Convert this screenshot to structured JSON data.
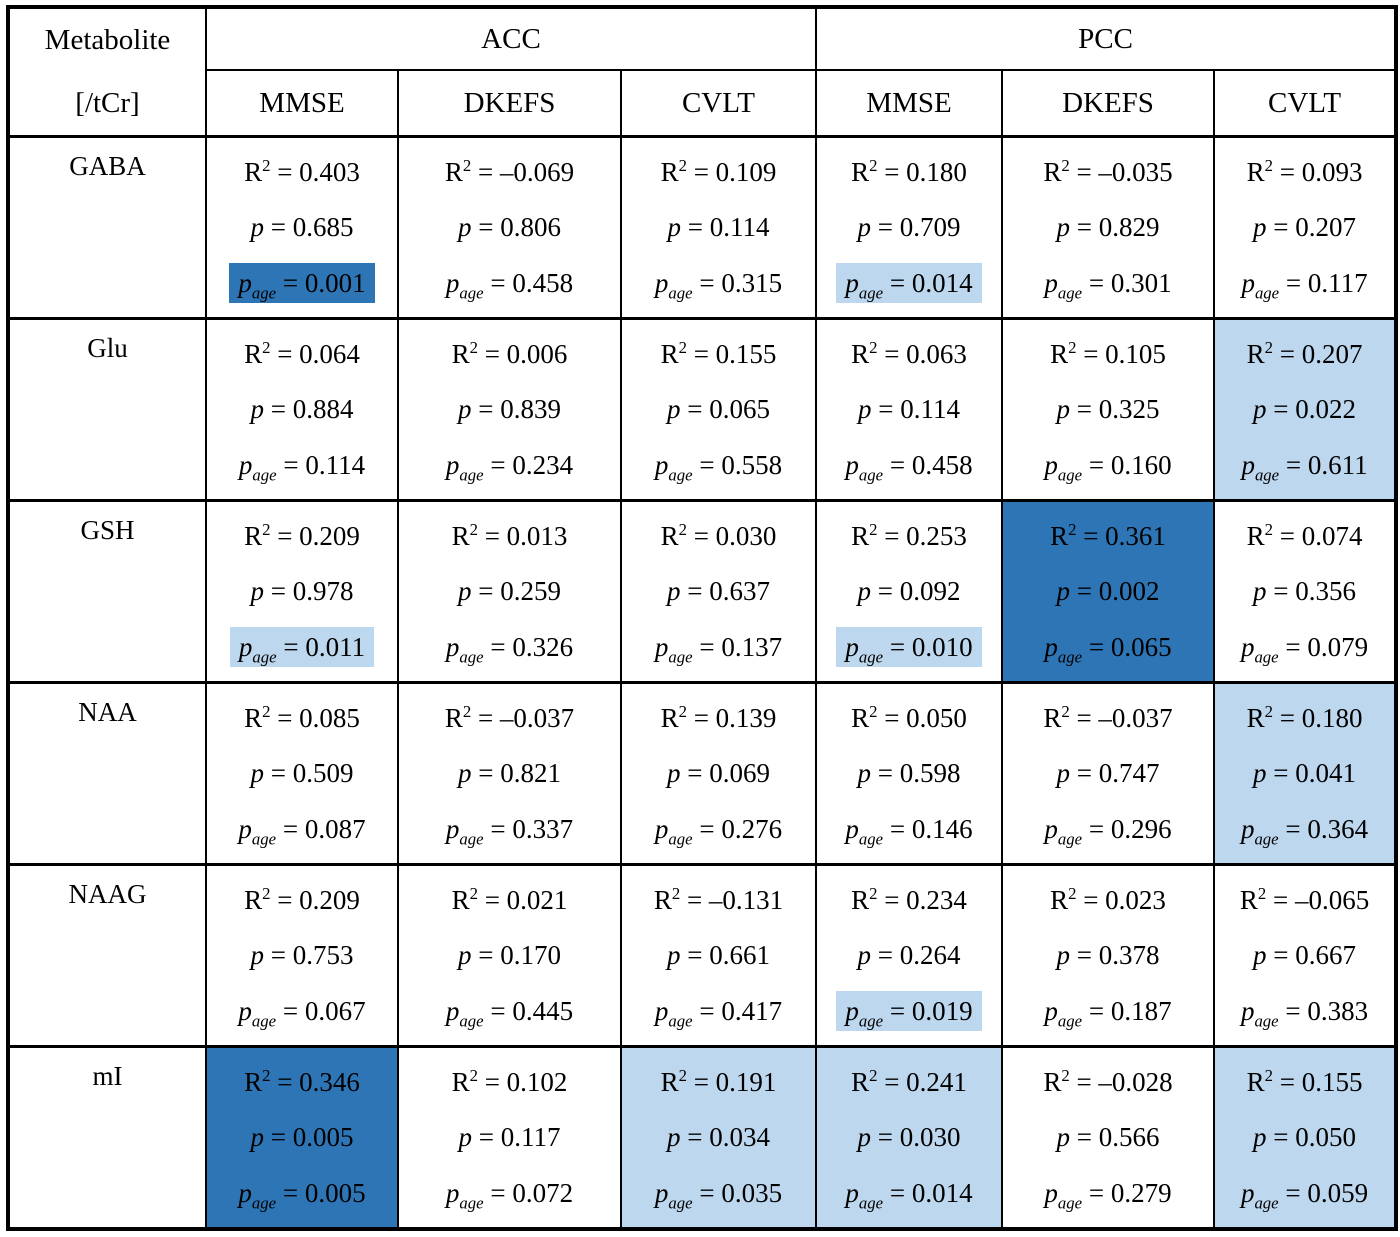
{
  "colors": {
    "highlight_dark_blue": "#2e75b6",
    "highlight_light_blue": "#bdd7ee",
    "border": "#000000",
    "background": "#ffffff"
  },
  "header": {
    "metabolite_line1": "Metabolite",
    "metabolite_line2": "[/tCr]",
    "regions": [
      "ACC",
      "PCC"
    ],
    "tests": [
      "MMSE",
      "DKEFS",
      "CVLT",
      "MMSE",
      "DKEFS",
      "CVLT"
    ]
  },
  "value_labels": {
    "r2_base": "R",
    "r2_exp": "2",
    "p": "p",
    "age": "age",
    "eq": " = "
  },
  "chart_data": {
    "type": "table",
    "columns": [
      "Metabolite [/tCr]",
      "ACC MMSE",
      "ACC DKEFS",
      "ACC CVLT",
      "PCC MMSE",
      "PCC DKEFS",
      "PCC CVLT"
    ],
    "cell_line_format": [
      "R2 = value",
      "p = value",
      "page = value"
    ],
    "highlight_legend": {
      "cell-dark": "entire cell shaded #2e75b6",
      "cell-light": "entire cell shaded #bdd7ee",
      "page-dark": "p_age line shaded #2e75b6",
      "page-light": "p_age line shaded #bdd7ee",
      "none": "no shading"
    },
    "rows": [
      {
        "metabolite": "GABA",
        "cells": [
          {
            "r2": "0.403",
            "p": "0.685",
            "p_age": "0.001",
            "highlight": "page-dark"
          },
          {
            "r2": "–0.069",
            "p": "0.806",
            "p_age": "0.458",
            "highlight": "none"
          },
          {
            "r2": "0.109",
            "p": "0.114",
            "p_age": "0.315",
            "highlight": "none"
          },
          {
            "r2": "0.180",
            "p": "0.709",
            "p_age": "0.014",
            "highlight": "page-light"
          },
          {
            "r2": "–0.035",
            "p": "0.829",
            "p_age": "0.301",
            "highlight": "none"
          },
          {
            "r2": "0.093",
            "p": "0.207",
            "p_age": "0.117",
            "highlight": "none"
          }
        ]
      },
      {
        "metabolite": "Glu",
        "cells": [
          {
            "r2": "0.064",
            "p": "0.884",
            "p_age": "0.114",
            "highlight": "none"
          },
          {
            "r2": "0.006",
            "p": "0.839",
            "p_age": "0.234",
            "highlight": "none"
          },
          {
            "r2": "0.155",
            "p": "0.065",
            "p_age": "0.558",
            "highlight": "none"
          },
          {
            "r2": "0.063",
            "p": "0.114",
            "p_age": "0.458",
            "highlight": "none"
          },
          {
            "r2": "0.105",
            "p": "0.325",
            "p_age": "0.160",
            "highlight": "none"
          },
          {
            "r2": "0.207",
            "p": "0.022",
            "p_age": "0.611",
            "highlight": "cell-light"
          }
        ]
      },
      {
        "metabolite": "GSH",
        "cells": [
          {
            "r2": "0.209",
            "p": "0.978",
            "p_age": "0.011",
            "highlight": "page-light"
          },
          {
            "r2": "0.013",
            "p": "0.259",
            "p_age": "0.326",
            "highlight": "none"
          },
          {
            "r2": "0.030",
            "p": "0.637",
            "p_age": "0.137",
            "highlight": "none"
          },
          {
            "r2": "0.253",
            "p": "0.092",
            "p_age": "0.010",
            "highlight": "page-light"
          },
          {
            "r2": "0.361",
            "p": "0.002",
            "p_age": "0.065",
            "highlight": "cell-dark"
          },
          {
            "r2": "0.074",
            "p": "0.356",
            "p_age": "0.079",
            "highlight": "none"
          }
        ]
      },
      {
        "metabolite": "NAA",
        "cells": [
          {
            "r2": "0.085",
            "p": "0.509",
            "p_age": "0.087",
            "highlight": "none"
          },
          {
            "r2": "–0.037",
            "p": "0.821",
            "p_age": "0.337",
            "highlight": "none"
          },
          {
            "r2": "0.139",
            "p": "0.069",
            "p_age": "0.276",
            "highlight": "none"
          },
          {
            "r2": "0.050",
            "p": "0.598",
            "p_age": "0.146",
            "highlight": "none"
          },
          {
            "r2": "–0.037",
            "p": "0.747",
            "p_age": "0.296",
            "highlight": "none"
          },
          {
            "r2": "0.180",
            "p": "0.041",
            "p_age": "0.364",
            "highlight": "cell-light"
          }
        ]
      },
      {
        "metabolite": "NAAG",
        "cells": [
          {
            "r2": "0.209",
            "p": "0.753",
            "p_age": "0.067",
            "highlight": "none"
          },
          {
            "r2": "0.021",
            "p": "0.170",
            "p_age": "0.445",
            "highlight": "none"
          },
          {
            "r2": "–0.131",
            "p": "0.661",
            "p_age": "0.417",
            "highlight": "none"
          },
          {
            "r2": "0.234",
            "p": "0.264",
            "p_age": "0.019",
            "highlight": "page-light"
          },
          {
            "r2": "0.023",
            "p": "0.378",
            "p_age": "0.187",
            "highlight": "none"
          },
          {
            "r2": "–0.065",
            "p": "0.667",
            "p_age": "0.383",
            "highlight": "none"
          }
        ]
      },
      {
        "metabolite": "mI",
        "cells": [
          {
            "r2": "0.346",
            "p": "0.005",
            "p_age": "0.005",
            "highlight": "cell-dark"
          },
          {
            "r2": "0.102",
            "p": "0.117",
            "p_age": "0.072",
            "highlight": "none"
          },
          {
            "r2": "0.191",
            "p": "0.034",
            "p_age": "0.035",
            "highlight": "cell-light"
          },
          {
            "r2": "0.241",
            "p": "0.030",
            "p_age": "0.014",
            "highlight": "cell-light"
          },
          {
            "r2": "–0.028",
            "p": "0.566",
            "p_age": "0.279",
            "highlight": "none"
          },
          {
            "r2": "0.155",
            "p": "0.050",
            "p_age": "0.059",
            "highlight": "cell-light"
          }
        ]
      }
    ]
  }
}
